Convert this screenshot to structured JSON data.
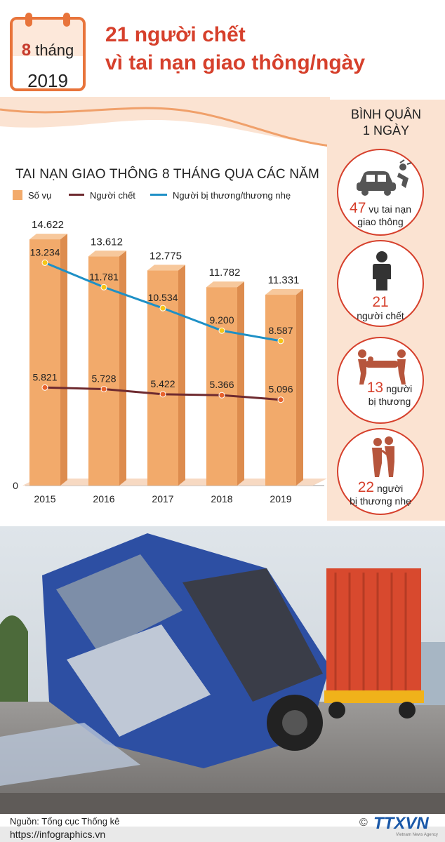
{
  "header": {
    "period_month": "8",
    "period_month_word": "tháng",
    "period_year": "2019",
    "title_line1": "21 người chết",
    "title_line2": "vì tai nạn giao thông/ngày"
  },
  "sidebar": {
    "title_line1": "BÌNH QUÂN",
    "title_line2": "1 NGÀY",
    "items": [
      {
        "number": "47",
        "label_a": "vụ tai nạn",
        "label_b": "giao thông",
        "icon": "car-crash-icon"
      },
      {
        "number": "21",
        "label_a": "người chết",
        "label_b": "",
        "icon": "person-icon"
      },
      {
        "number": "13",
        "label_a": "người",
        "label_b": "bị thương",
        "icon": "stretcher-icon"
      },
      {
        "number": "22",
        "label_a": "người",
        "label_b": "bị thương nhẹ",
        "icon": "injured-people-icon"
      }
    ]
  },
  "chart_data": {
    "type": "bar",
    "title": "TAI NẠN GIAO THÔNG 8 THÁNG QUA CÁC NĂM",
    "categories": [
      "2015",
      "2016",
      "2017",
      "2018",
      "2019"
    ],
    "ylim": [
      0,
      15500
    ],
    "y_tick_labels": [
      "0"
    ],
    "legend_placement": "top",
    "series": [
      {
        "name": "Số vụ",
        "kind": "bar",
        "color": "#f2aa6b",
        "values": [
          14622,
          13612,
          12775,
          11782,
          11331
        ],
        "labels": [
          "14.622",
          "13.612",
          "12.775",
          "11.782",
          "11.331"
        ]
      },
      {
        "name": "Người chết",
        "kind": "line",
        "color": "#6e2a2f",
        "marker_color": "#e8622c",
        "values": [
          5821,
          5728,
          5422,
          5366,
          5096
        ],
        "labels": [
          "5.821",
          "5.728",
          "5.422",
          "5.366",
          "5.096"
        ]
      },
      {
        "name": "Người bị thương/thương nhẹ",
        "kind": "line",
        "color": "#1e90c6",
        "marker_color": "#f6c517",
        "values": [
          13234,
          11781,
          10534,
          9200,
          8587
        ],
        "labels": [
          "13.234",
          "11.781",
          "10.534",
          "9.200",
          "8.587"
        ]
      }
    ]
  },
  "photo": {
    "icon": "crash-scene-photo"
  },
  "footer": {
    "source": "Nguồn: Tổng cục Thống kê",
    "url": "https://infographics.vn",
    "logo_text": "TTXVN",
    "logo_sub": "Vietnam News Agency",
    "copyright": "©"
  },
  "colors": {
    "accent": "#d6402c",
    "bar": "#f2aa6b",
    "sidebar_bg": "#fbe3d2"
  }
}
